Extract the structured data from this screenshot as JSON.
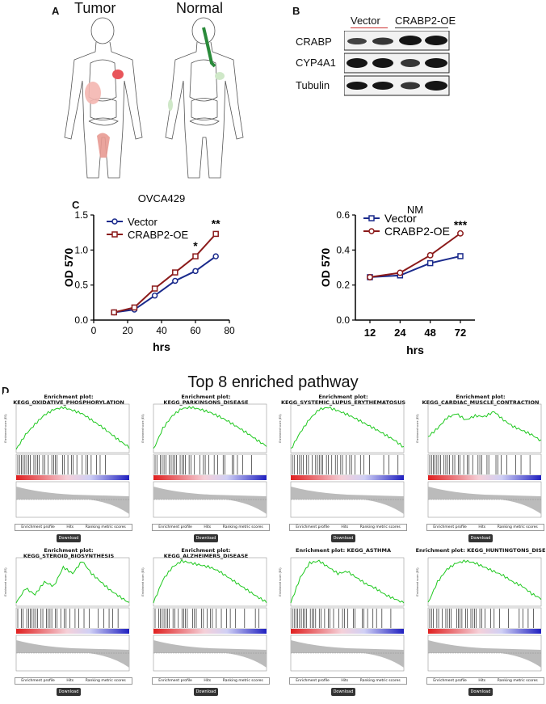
{
  "panel_labels": {
    "a": "A",
    "b": "B",
    "c": "C",
    "d": "D"
  },
  "panelA": {
    "tumor_label": "Tumor",
    "normal_label": "Normal"
  },
  "panelB": {
    "column_labels": [
      "Vector",
      "CRABP2-OE"
    ],
    "row_labels": [
      "CRABP",
      "CYP4A1",
      "Tubulin"
    ]
  },
  "panelD": {
    "title": "Top 8 enriched pathway",
    "download_label": "Download",
    "legend_items": [
      "Enrichment profile",
      "Hits",
      "Ranking metric scores"
    ],
    "plots": [
      {
        "title": "Enrichment plot: KEGG_OXIDATIVE_PHOSPHORYLATION"
      },
      {
        "title": "Enrichment plot: KEGG_PARKINSONS_DISEASE"
      },
      {
        "title": "Enrichment plot: KEGG_SYSTEMIC_LUPUS_ERYTHEMATOSUS"
      },
      {
        "title": "Enrichment plot: KEGG_CARDIAC_MUSCLE_CONTRACTION"
      },
      {
        "title": "Enrichment plot: KEGG_STEROID_BIOSYNTHESIS"
      },
      {
        "title": "Enrichment plot: KEGG_ALZHEIMERS_DISEASE"
      },
      {
        "title": "Enrichment plot: KEGG_ASTHMA"
      },
      {
        "title": "Enrichment plot: KEGG_HUNTINGTONS_DISE"
      }
    ]
  },
  "chart_data": [
    {
      "type": "line",
      "title": "OVCA429",
      "xlabel": "hrs",
      "ylabel": "OD 570",
      "xlim": [
        0,
        80
      ],
      "ylim": [
        0,
        1.5
      ],
      "xticks": [
        0,
        20,
        40,
        60,
        80
      ],
      "yticks": [
        0.0,
        0.5,
        1.0,
        1.5
      ],
      "x": [
        12,
        24,
        36,
        48,
        60,
        72
      ],
      "series": [
        {
          "name": "Vector",
          "color": "#1a2a8c",
          "marker": "circle",
          "values": [
            0.11,
            0.15,
            0.35,
            0.56,
            0.7,
            0.91
          ]
        },
        {
          "name": "CRABP2-OE",
          "color": "#8b1a1a",
          "marker": "square",
          "values": [
            0.11,
            0.18,
            0.45,
            0.68,
            0.91,
            1.23
          ]
        }
      ],
      "annotations": [
        {
          "x": 60,
          "text": "*"
        },
        {
          "x": 72,
          "text": "**"
        }
      ],
      "legend": "top-left"
    },
    {
      "type": "line",
      "title": "NM",
      "xlabel": "hrs",
      "ylabel": "OD 570",
      "ylim": [
        0,
        0.6
      ],
      "categories": [
        "12",
        "24",
        "48",
        "72"
      ],
      "yticks": [
        0.0,
        0.2,
        0.4,
        0.6
      ],
      "series": [
        {
          "name": "Vector",
          "color": "#1a2a8c",
          "marker": "square",
          "values": [
            0.245,
            0.255,
            0.325,
            0.365
          ]
        },
        {
          "name": "CRABP2-OE",
          "color": "#8b1a1a",
          "marker": "circle",
          "values": [
            0.245,
            0.27,
            0.37,
            0.495
          ]
        }
      ],
      "annotations": [
        {
          "category": "72",
          "text": "***"
        }
      ],
      "legend": "top-left"
    }
  ]
}
